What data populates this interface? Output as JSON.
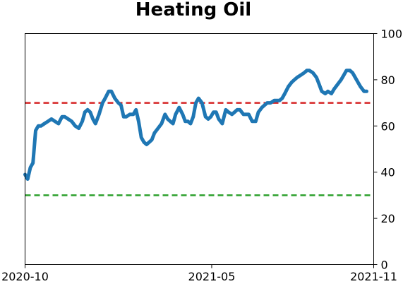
{
  "chart_data": {
    "type": "line",
    "title": "Heating Oil",
    "xlabel": "",
    "ylabel": "",
    "ylim": [
      0,
      100
    ],
    "y_axis_side": "right",
    "y_ticks": [
      0,
      20,
      40,
      60,
      80,
      100
    ],
    "y_tick_labels": [
      "0",
      "20",
      "40",
      "60",
      "80",
      "100"
    ],
    "x_range": [
      "2020-10-01",
      "2021-11-01"
    ],
    "x_ticks": [
      "2020-10-01",
      "2021-05-01",
      "2021-11-01"
    ],
    "x_tick_labels": [
      "2020-10",
      "2021-05",
      "2021-11"
    ],
    "grid": false,
    "series": [
      {
        "color": "#1f77b4",
        "x": [
          "2020-10-01",
          "2020-10-04",
          "2020-10-07",
          "2020-10-10",
          "2020-10-13",
          "2020-10-16",
          "2020-10-19",
          "2020-10-23",
          "2020-10-27",
          "2020-10-31",
          "2020-11-04",
          "2020-11-08",
          "2020-11-12",
          "2020-11-15",
          "2020-11-19",
          "2020-11-23",
          "2020-11-27",
          "2020-12-01",
          "2020-12-05",
          "2020-12-08",
          "2020-12-11",
          "2020-12-14",
          "2020-12-17",
          "2020-12-20",
          "2020-12-24",
          "2020-12-28",
          "2020-12-31",
          "2021-01-04",
          "2021-01-07",
          "2021-01-11",
          "2021-01-15",
          "2021-01-18",
          "2021-01-21",
          "2021-01-24",
          "2021-01-28",
          "2021-02-01",
          "2021-02-04",
          "2021-02-07",
          "2021-02-10",
          "2021-02-13",
          "2021-02-16",
          "2021-02-19",
          "2021-02-22",
          "2021-02-25",
          "2021-03-01",
          "2021-03-05",
          "2021-03-09",
          "2021-03-12",
          "2021-03-15",
          "2021-03-18",
          "2021-03-21",
          "2021-03-25",
          "2021-03-29",
          "2021-04-01",
          "2021-04-04",
          "2021-04-07",
          "2021-04-10",
          "2021-04-13",
          "2021-04-16",
          "2021-04-20",
          "2021-04-24",
          "2021-04-27",
          "2021-04-30",
          "2021-05-03",
          "2021-05-06",
          "2021-05-09",
          "2021-05-13",
          "2021-05-17",
          "2021-05-20",
          "2021-05-24",
          "2021-05-27",
          "2021-05-30",
          "2021-06-02",
          "2021-06-06",
          "2021-06-09",
          "2021-06-12",
          "2021-06-16",
          "2021-06-20",
          "2021-06-23",
          "2021-06-27",
          "2021-06-30",
          "2021-07-03",
          "2021-07-07",
          "2021-07-11",
          "2021-07-14",
          "2021-07-17",
          "2021-07-20",
          "2021-07-23",
          "2021-07-27",
          "2021-07-31",
          "2021-08-03",
          "2021-08-06",
          "2021-08-10",
          "2021-08-14",
          "2021-08-17",
          "2021-08-20",
          "2021-08-24",
          "2021-08-28",
          "2021-08-31",
          "2021-09-03",
          "2021-09-07",
          "2021-09-10",
          "2021-09-14",
          "2021-09-17",
          "2021-09-21",
          "2021-09-25",
          "2021-09-28",
          "2021-10-01",
          "2021-10-05",
          "2021-10-08",
          "2021-10-11",
          "2021-10-14",
          "2021-10-17",
          "2021-10-21",
          "2021-10-24"
        ],
        "values": [
          39,
          37,
          42,
          44,
          58,
          60,
          60,
          61,
          62,
          63,
          62,
          61,
          64,
          64,
          63,
          62,
          60,
          59,
          62,
          66,
          67,
          66,
          63,
          61,
          65,
          70,
          72,
          75,
          75,
          72,
          70,
          69,
          64,
          64,
          65,
          65,
          67,
          62,
          55,
          53,
          52,
          53,
          54,
          57,
          59,
          61,
          65,
          63,
          62,
          61,
          65,
          68,
          65,
          62,
          62,
          61,
          64,
          70,
          72,
          70,
          64,
          63,
          64,
          66,
          66,
          63,
          61,
          67,
          66,
          65,
          66,
          67,
          67,
          65,
          65,
          65,
          62,
          62,
          66,
          68,
          69,
          70,
          70,
          71,
          71,
          71,
          72,
          74,
          77,
          79,
          80,
          81,
          82,
          83,
          84,
          84,
          83,
          81,
          78,
          75,
          74,
          75,
          74,
          76,
          78,
          80,
          82,
          84,
          84,
          83,
          81,
          79,
          77,
          75,
          75
        ]
      }
    ],
    "reference_lines": [
      {
        "y": 70,
        "color": "#d62728",
        "style": "dashed"
      },
      {
        "y": 30,
        "color": "#2ca02c",
        "style": "dashed"
      }
    ]
  }
}
